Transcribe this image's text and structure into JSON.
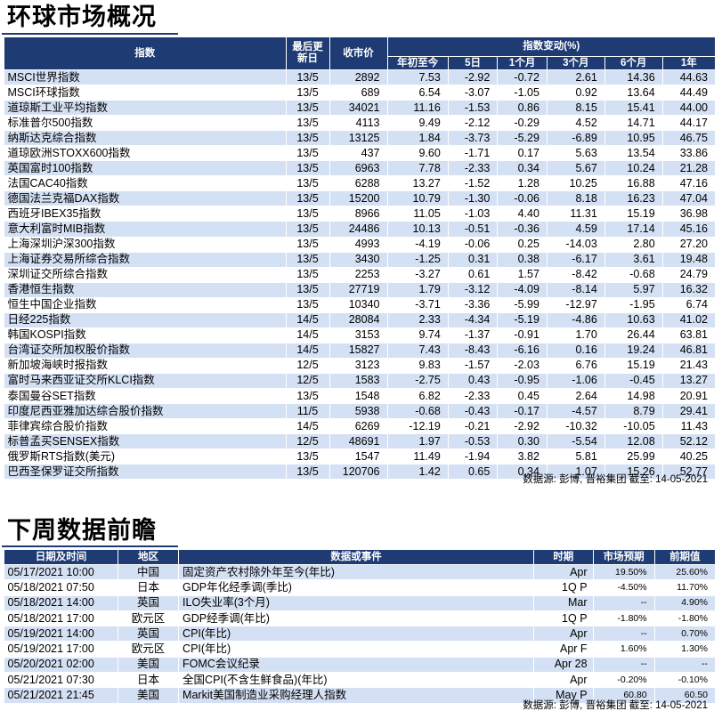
{
  "section1": {
    "title": "环球市场概况",
    "headers": {
      "index": "指数",
      "date": "最后更新日",
      "close": "收市价",
      "change_group": "指数变动(%)",
      "ytd": "年初至今",
      "d5": "5日",
      "m1": "1个月",
      "m3": "3个月",
      "m6": "6个月",
      "y1": "1年"
    },
    "rows": [
      {
        "name": "MSCI世界指数",
        "date": "13/5",
        "close": "2892",
        "ytd": "7.53",
        "d5": "-2.92",
        "m1": "-0.72",
        "m3": "2.61",
        "m6": "14.36",
        "y1": "44.63"
      },
      {
        "name": "MSCI环球指数",
        "date": "13/5",
        "close": "689",
        "ytd": "6.54",
        "d5": "-3.07",
        "m1": "-1.05",
        "m3": "0.92",
        "m6": "13.64",
        "y1": "44.49"
      },
      {
        "name": "道琼斯工业平均指数",
        "date": "13/5",
        "close": "34021",
        "ytd": "11.16",
        "d5": "-1.53",
        "m1": "0.86",
        "m3": "8.15",
        "m6": "15.41",
        "y1": "44.00"
      },
      {
        "name": "标准普尔500指数",
        "date": "13/5",
        "close": "4113",
        "ytd": "9.49",
        "d5": "-2.12",
        "m1": "-0.29",
        "m3": "4.52",
        "m6": "14.71",
        "y1": "44.17"
      },
      {
        "name": "纳斯达克综合指数",
        "date": "13/5",
        "close": "13125",
        "ytd": "1.84",
        "d5": "-3.73",
        "m1": "-5.29",
        "m3": "-6.89",
        "m6": "10.95",
        "y1": "46.75"
      },
      {
        "name": "道琼欧洲STOXX600指数",
        "date": "13/5",
        "close": "437",
        "ytd": "9.60",
        "d5": "-1.71",
        "m1": "0.17",
        "m3": "5.63",
        "m6": "13.54",
        "y1": "33.86"
      },
      {
        "name": "英国富时100指数",
        "date": "13/5",
        "close": "6963",
        "ytd": "7.78",
        "d5": "-2.33",
        "m1": "0.34",
        "m3": "5.67",
        "m6": "10.24",
        "y1": "21.28"
      },
      {
        "name": "法国CAC40指数",
        "date": "13/5",
        "close": "6288",
        "ytd": "13.27",
        "d5": "-1.52",
        "m1": "1.28",
        "m3": "10.25",
        "m6": "16.88",
        "y1": "47.16"
      },
      {
        "name": "德国法兰克福DAX指数",
        "date": "13/5",
        "close": "15200",
        "ytd": "10.79",
        "d5": "-1.30",
        "m1": "-0.06",
        "m3": "8.18",
        "m6": "16.23",
        "y1": "47.04"
      },
      {
        "name": "西班牙IBEX35指数",
        "date": "13/5",
        "close": "8966",
        "ytd": "11.05",
        "d5": "-1.03",
        "m1": "4.40",
        "m3": "11.31",
        "m6": "15.19",
        "y1": "36.98"
      },
      {
        "name": "意大利富时MIB指数",
        "date": "13/5",
        "close": "24486",
        "ytd": "10.13",
        "d5": "-0.51",
        "m1": "-0.36",
        "m3": "4.59",
        "m6": "17.14",
        "y1": "45.16"
      },
      {
        "name": "上海深圳沪深300指数",
        "date": "13/5",
        "close": "4993",
        "ytd": "-4.19",
        "d5": "-0.06",
        "m1": "0.25",
        "m3": "-14.03",
        "m6": "2.80",
        "y1": "27.20"
      },
      {
        "name": "上海证券交易所综合指数",
        "date": "13/5",
        "close": "3430",
        "ytd": "-1.25",
        "d5": "0.31",
        "m1": "0.38",
        "m3": "-6.17",
        "m6": "3.61",
        "y1": "19.48"
      },
      {
        "name": "深圳证交所综合指数",
        "date": "13/5",
        "close": "2253",
        "ytd": "-3.27",
        "d5": "0.61",
        "m1": "1.57",
        "m3": "-8.42",
        "m6": "-0.68",
        "y1": "24.79"
      },
      {
        "name": "香港恒生指数",
        "date": "13/5",
        "close": "27719",
        "ytd": "1.79",
        "d5": "-3.12",
        "m1": "-4.09",
        "m3": "-8.14",
        "m6": "5.97",
        "y1": "16.32"
      },
      {
        "name": "恒生中国企业指数",
        "date": "13/5",
        "close": "10340",
        "ytd": "-3.71",
        "d5": "-3.36",
        "m1": "-5.99",
        "m3": "-12.97",
        "m6": "-1.95",
        "y1": "6.74"
      },
      {
        "name": "日经225指数",
        "date": "14/5",
        "close": "28084",
        "ytd": "2.33",
        "d5": "-4.34",
        "m1": "-5.19",
        "m3": "-4.86",
        "m6": "10.63",
        "y1": "41.02"
      },
      {
        "name": "韩国KOSPI指数",
        "date": "14/5",
        "close": "3153",
        "ytd": "9.74",
        "d5": "-1.37",
        "m1": "-0.91",
        "m3": "1.70",
        "m6": "26.44",
        "y1": "63.81"
      },
      {
        "name": "台湾证交所加权股价指数",
        "date": "14/5",
        "close": "15827",
        "ytd": "7.43",
        "d5": "-8.43",
        "m1": "-6.16",
        "m3": "0.16",
        "m6": "19.24",
        "y1": "46.81"
      },
      {
        "name": "新加坡海峡时报指数",
        "date": "12/5",
        "close": "3123",
        "ytd": "9.83",
        "d5": "-1.57",
        "m1": "-2.03",
        "m3": "6.76",
        "m6": "15.19",
        "y1": "21.43"
      },
      {
        "name": "富时马来西亚证交所KLCI指数",
        "date": "12/5",
        "close": "1583",
        "ytd": "-2.75",
        "d5": "0.43",
        "m1": "-0.95",
        "m3": "-1.06",
        "m6": "-0.45",
        "y1": "13.27"
      },
      {
        "name": "泰国曼谷SET指数",
        "date": "13/5",
        "close": "1548",
        "ytd": "6.82",
        "d5": "-2.33",
        "m1": "0.45",
        "m3": "2.64",
        "m6": "14.98",
        "y1": "20.91"
      },
      {
        "name": "印度尼西亚雅加达综合股价指数",
        "date": "11/5",
        "close": "5938",
        "ytd": "-0.68",
        "d5": "-0.43",
        "m1": "-0.17",
        "m3": "-4.57",
        "m6": "8.79",
        "y1": "29.41"
      },
      {
        "name": "菲律宾综合股价指数",
        "date": "14/5",
        "close": "6269",
        "ytd": "-12.19",
        "d5": "-0.21",
        "m1": "-2.92",
        "m3": "-10.32",
        "m6": "-10.05",
        "y1": "11.43"
      },
      {
        "name": "标普孟买SENSEX指数",
        "date": "12/5",
        "close": "48691",
        "ytd": "1.97",
        "d5": "-0.53",
        "m1": "0.30",
        "m3": "-5.54",
        "m6": "12.08",
        "y1": "52.12"
      },
      {
        "name": "俄罗斯RTS指数(美元)",
        "date": "13/5",
        "close": "1547",
        "ytd": "11.49",
        "d5": "-1.94",
        "m1": "3.82",
        "m3": "5.81",
        "m6": "25.99",
        "y1": "40.25"
      },
      {
        "name": "巴西圣保罗证交所指数",
        "date": "13/5",
        "close": "120706",
        "ytd": "1.42",
        "d5": "0.65",
        "m1": "0.34",
        "m3": "1.07",
        "m6": "15.26",
        "y1": "52.77"
      }
    ],
    "source": "数据源: 彭博, 晋裕集团 截至: 14-05-2021"
  },
  "section2": {
    "title": "下周数据前瞻",
    "headers": {
      "datetime": "日期及时间",
      "region": "地区",
      "event": "数据或事件",
      "period": "时期",
      "forecast": "市场预期",
      "previous": "前期值"
    },
    "rows": [
      {
        "datetime": "05/17/2021 10:00",
        "region": "中国",
        "event": "固定资产农村除外年至今(年比)",
        "period": "Apr",
        "forecast": "19.50%",
        "previous": "25.60%"
      },
      {
        "datetime": "05/18/2021 07:50",
        "region": "日本",
        "event": "GDP年化经季调(季比)",
        "period": "1Q P",
        "forecast": "-4.50%",
        "previous": "11.70%"
      },
      {
        "datetime": "05/18/2021 14:00",
        "region": "英国",
        "event": "ILO失业率(3个月)",
        "period": "Mar",
        "forecast": "--",
        "previous": "4.90%"
      },
      {
        "datetime": "05/18/2021 17:00",
        "region": "欧元区",
        "event": "GDP经季调(年比)",
        "period": "1Q P",
        "forecast": "-1.80%",
        "previous": "-1.80%"
      },
      {
        "datetime": "05/19/2021 14:00",
        "region": "英国",
        "event": "CPI(年比)",
        "period": "Apr",
        "forecast": "--",
        "previous": "0.70%"
      },
      {
        "datetime": "05/19/2021 17:00",
        "region": "欧元区",
        "event": "CPI(年比)",
        "period": "Apr F",
        "forecast": "1.60%",
        "previous": "1.30%"
      },
      {
        "datetime": "05/20/2021 02:00",
        "region": "美国",
        "event": "FOMC会议纪录",
        "period": "Apr 28",
        "forecast": "--",
        "previous": "--"
      },
      {
        "datetime": "05/21/2021 07:30",
        "region": "日本",
        "event": "全国CPI(不含生鲜食品)(年比)",
        "period": "Apr",
        "forecast": "-0.20%",
        "previous": "-0.10%"
      },
      {
        "datetime": "05/21/2021 21:45",
        "region": "美国",
        "event": "Markit美国制造业采购经理人指数",
        "period": "May P",
        "forecast": "60.80",
        "previous": "60.50"
      }
    ],
    "source": "数据源: 彭博, 晋裕集团 截至: 14-05-2021"
  }
}
